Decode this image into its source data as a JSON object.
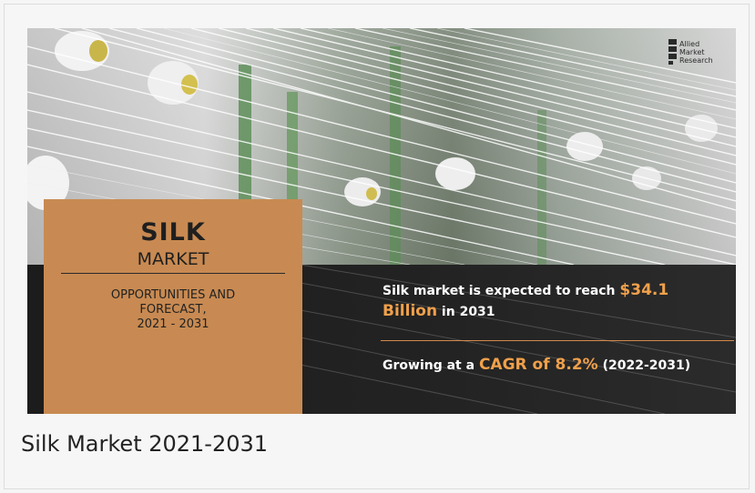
{
  "banner": {
    "title": "SILK",
    "subtitle": "MARKET",
    "desc_line1": "OPPORTUNITIES AND",
    "desc_line2": "FORECAST,",
    "desc_line3": "2021 - 2031",
    "stat1_prefix": "Silk market is expected to reach ",
    "stat1_value": "$34.1 Billion",
    "stat1_suffix": " in 2031",
    "stat2_prefix": "Growing at a ",
    "stat2_value": "CAGR of 8.2%",
    "stat2_suffix": " (2022-2031)",
    "logo_line1": "Allied",
    "logo_line2": "Market",
    "logo_line3": "Research"
  },
  "caption": "Silk Market 2021-2031",
  "colors": {
    "panel": "#c88a52",
    "accent": "#f0a04b",
    "dark_band": "#1c1c1c"
  }
}
